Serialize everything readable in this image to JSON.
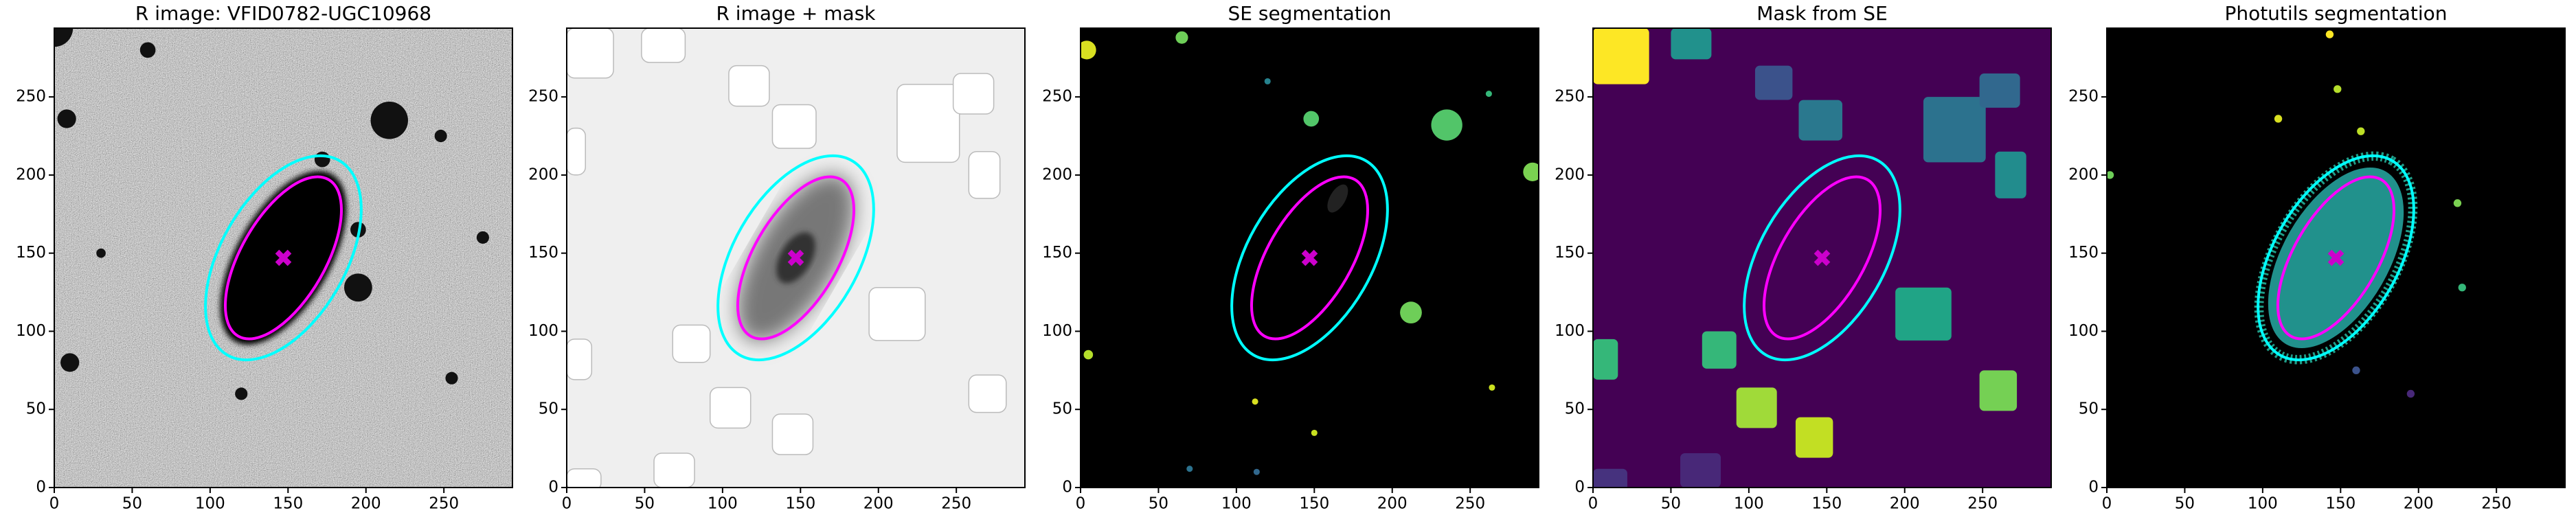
{
  "chart_data": [
    {
      "type": "image",
      "title": "R image: VFID0782-UGC10968",
      "xlim": [
        0,
        294
      ],
      "ylim": [
        0,
        294
      ],
      "xticks": [
        0,
        50,
        100,
        150,
        200,
        250
      ],
      "yticks": [
        0,
        50,
        100,
        150,
        200,
        250
      ],
      "ellipses": [
        {
          "cx": 147,
          "cy": 147,
          "a": 72,
          "b": 40,
          "angle": 60,
          "color": "#00ffff"
        },
        {
          "cx": 147,
          "cy": 147,
          "a": 58,
          "b": 27,
          "angle": 60,
          "color": "#ff00ff"
        }
      ],
      "marker": {
        "x": 147,
        "y": 147,
        "color": "#cc00cc"
      }
    },
    {
      "type": "image",
      "title": "R image + mask",
      "xlim": [
        0,
        294
      ],
      "ylim": [
        0,
        294
      ],
      "xticks": [
        0,
        50,
        100,
        150,
        200,
        250
      ],
      "yticks": [
        0,
        50,
        100,
        150,
        200,
        250
      ],
      "ellipses": [
        {
          "cx": 147,
          "cy": 147,
          "a": 72,
          "b": 40,
          "angle": 60,
          "color": "#00ffff"
        },
        {
          "cx": 147,
          "cy": 147,
          "a": 58,
          "b": 27,
          "angle": 60,
          "color": "#ff00ff"
        }
      ],
      "marker": {
        "x": 147,
        "y": 147,
        "color": "#cc00cc"
      }
    },
    {
      "type": "image",
      "title": "SE segmentation",
      "xlim": [
        0,
        294
      ],
      "ylim": [
        0,
        294
      ],
      "xticks": [
        0,
        50,
        100,
        150,
        200,
        250
      ],
      "yticks": [
        0,
        50,
        100,
        150,
        200,
        250
      ],
      "ellipses": [
        {
          "cx": 147,
          "cy": 147,
          "a": 72,
          "b": 40,
          "angle": 60,
          "color": "#00ffff"
        },
        {
          "cx": 147,
          "cy": 147,
          "a": 58,
          "b": 27,
          "angle": 60,
          "color": "#ff00ff"
        }
      ],
      "marker": {
        "x": 147,
        "y": 147,
        "color": "#cc00cc"
      }
    },
    {
      "type": "image",
      "title": "Mask from SE",
      "xlim": [
        0,
        294
      ],
      "ylim": [
        0,
        294
      ],
      "xticks": [
        0,
        50,
        100,
        150,
        200,
        250
      ],
      "yticks": [
        0,
        50,
        100,
        150,
        200,
        250
      ],
      "ellipses": [
        {
          "cx": 147,
          "cy": 147,
          "a": 72,
          "b": 40,
          "angle": 60,
          "color": "#00ffff"
        },
        {
          "cx": 147,
          "cy": 147,
          "a": 58,
          "b": 27,
          "angle": 60,
          "color": "#ff00ff"
        }
      ],
      "marker": {
        "x": 147,
        "y": 147,
        "color": "#cc00cc"
      }
    },
    {
      "type": "image",
      "title": "Photutils segmentation",
      "xlim": [
        0,
        294
      ],
      "ylim": [
        0,
        294
      ],
      "xticks": [
        0,
        50,
        100,
        150,
        200,
        250
      ],
      "yticks": [
        0,
        50,
        100,
        150,
        200,
        250
      ],
      "ellipses": [
        {
          "cx": 147,
          "cy": 147,
          "a": 72,
          "b": 40,
          "angle": 60,
          "color": "#00ffff"
        },
        {
          "cx": 147,
          "cy": 147,
          "a": 58,
          "b": 27,
          "angle": 60,
          "color": "#ff00ff"
        }
      ],
      "marker": {
        "x": 147,
        "y": 147,
        "color": "#cc00cc"
      }
    }
  ]
}
